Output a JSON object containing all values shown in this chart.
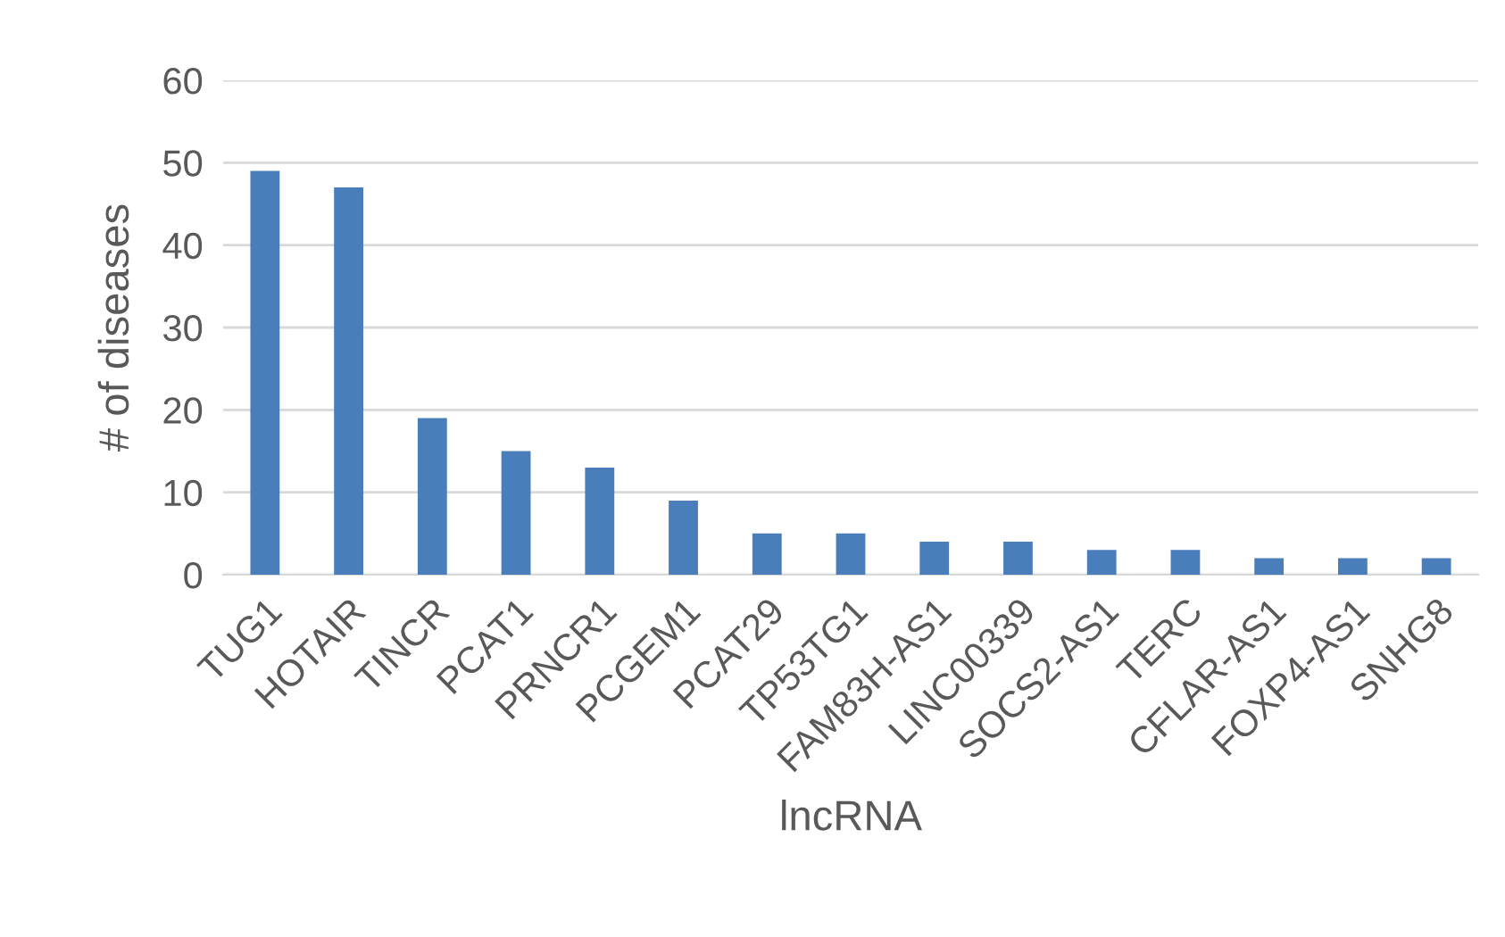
{
  "chart_data": {
    "type": "bar",
    "xlabel": "lncRNA",
    "ylabel": "# of diseases",
    "categories": [
      "TUG1",
      "HOTAIR",
      "TINCR",
      "PCAT1",
      "PRNCR1",
      "PCGEM1",
      "PCAT29",
      "TP53TG1",
      "FAM83H-AS1",
      "LINC00339",
      "SOCS2-AS1",
      "TERC",
      "CFLAR-AS1",
      "FOXP4-AS1",
      "SNHG8"
    ],
    "values": [
      49,
      47,
      19,
      15,
      13,
      9,
      5,
      5,
      4,
      4,
      3,
      3,
      2,
      2,
      2
    ],
    "color": "#4a7ebb",
    "ylim": [
      0,
      60
    ],
    "yticks": [
      0,
      10,
      20,
      30,
      40,
      50,
      60
    ],
    "grid": "y",
    "legend": false
  }
}
